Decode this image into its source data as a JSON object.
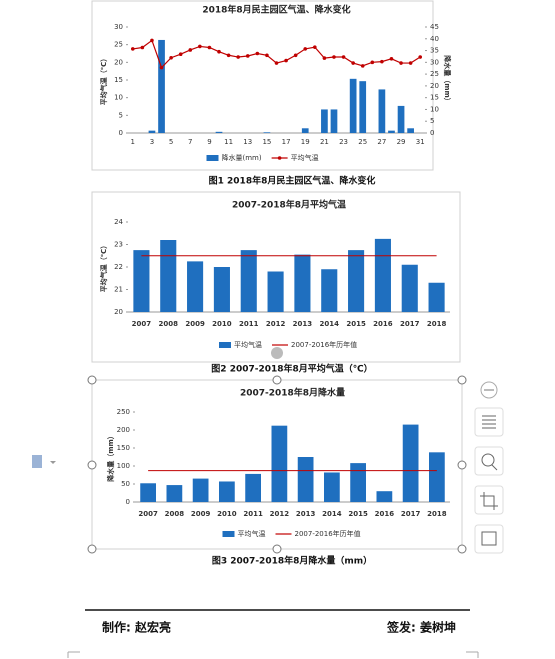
{
  "chart_data": [
    {
      "type": "combo",
      "title": "2018年8月民主园区气温、降水变化",
      "categories": [
        "1",
        null,
        "3",
        null,
        "5",
        null,
        "7",
        null,
        "9",
        null,
        "11",
        null,
        "13",
        null,
        "15",
        null,
        "17",
        null,
        "19",
        null,
        "21",
        null,
        "23",
        null,
        "25",
        null,
        "27",
        null,
        "29",
        null,
        "31"
      ],
      "ylabel": "平均气温（℃）",
      "y2label": "降水量（mm）",
      "ylim": [
        0,
        30
      ],
      "yticks": [
        0,
        5,
        10,
        15,
        20,
        25,
        30
      ],
      "y2lim": [
        0,
        45
      ],
      "y2ticks": [
        0,
        5,
        10,
        15,
        20,
        25,
        30,
        35,
        40,
        45
      ],
      "series": [
        {
          "name": "降水量(mm)",
          "type": "bar",
          "axis": "y2",
          "color": "#1f6fbf",
          "values": [
            0,
            0,
            1,
            39.5,
            0,
            0,
            0,
            0,
            0,
            0.5,
            0,
            0,
            0,
            0,
            0.3,
            0,
            0,
            0,
            2,
            0,
            10,
            10,
            0,
            23,
            22,
            0,
            18.5,
            1,
            11.5,
            2,
            0
          ]
        },
        {
          "name": "平均气温",
          "type": "line",
          "color": "#c00000",
          "marker": true,
          "values": [
            23.8,
            24.2,
            26.2,
            18.5,
            21.3,
            22.3,
            23.5,
            24.5,
            24.2,
            23.0,
            22.0,
            21.5,
            21.8,
            22.5,
            22.0,
            19.8,
            20.5,
            22.0,
            23.8,
            24.3,
            21.2,
            21.5,
            21.5,
            19.8,
            19.0,
            20.0,
            20.2,
            21.0,
            19.8,
            19.8,
            21.5
          ]
        }
      ]
    },
    {
      "type": "bar",
      "title": "2007-2018年8月平均气温",
      "categories": [
        "2007",
        "2008",
        "2009",
        "2010",
        "2011",
        "2012",
        "2013",
        "2014",
        "2015",
        "2016",
        "2017",
        "2018"
      ],
      "ylabel": "平均气温（℃）",
      "ylim": [
        20,
        24
      ],
      "yticks": [
        20,
        21,
        22,
        23,
        24
      ],
      "series": [
        {
          "name": "平均气温",
          "color": "#1f6fbf",
          "values": [
            22.75,
            23.2,
            22.25,
            22.0,
            22.75,
            21.8,
            22.55,
            21.9,
            22.75,
            23.25,
            22.1,
            21.3
          ]
        }
      ],
      "reference": {
        "name": "2007-2016年历年值",
        "value": 22.5,
        "color": "#c00000"
      }
    },
    {
      "type": "bar",
      "title": "2007-2018年8月降水量",
      "categories": [
        "2007",
        "2008",
        "2009",
        "2010",
        "2011",
        "2012",
        "2013",
        "2014",
        "2015",
        "2016",
        "2017",
        "2018"
      ],
      "ylabel": "降水量（mm）",
      "ylim": [
        0,
        250
      ],
      "yticks": [
        0,
        50,
        100,
        150,
        200,
        250
      ],
      "series": [
        {
          "name": "平均气温",
          "color": "#1f6fbf",
          "values": [
            52,
            47,
            65,
            57,
            78,
            212,
            125,
            82,
            108,
            30,
            215,
            138
          ]
        }
      ],
      "reference": {
        "name": "2007-2016年历年值",
        "value": 87,
        "color": "#c00000"
      }
    }
  ],
  "captions": [
    "图1 2018年8月民主园区气温、降水变化",
    "图2 2007-2018年8月平均气温（℃）",
    "图3 2007-2018年8月降水量（mm）"
  ],
  "footer": {
    "maker": "制作: 赵宏亮",
    "signer": "签发: 姜树坤"
  }
}
